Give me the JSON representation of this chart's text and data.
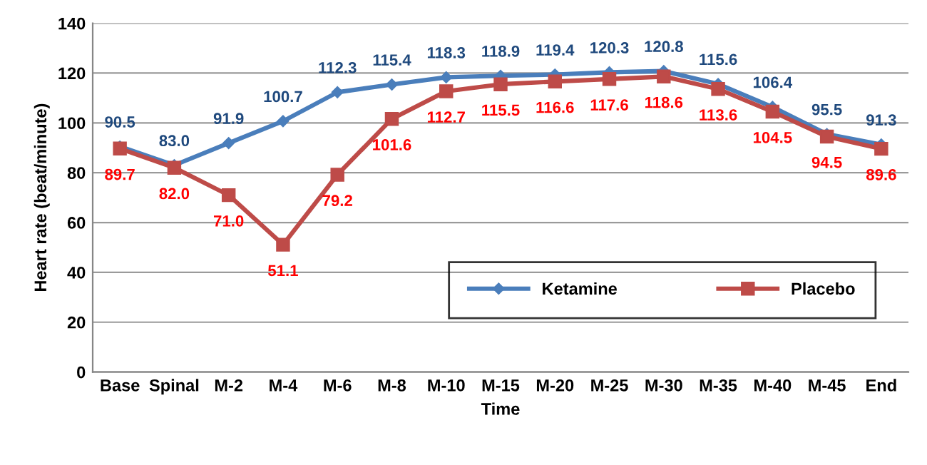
{
  "chart_data": {
    "type": "line",
    "xlabel": "Time",
    "ylabel": "Heart rate (beat/minute)",
    "categories": [
      "Base",
      "Spinal",
      "M-2",
      "M-4",
      "M-6",
      "M-8",
      "M-10",
      "M-15",
      "M-20",
      "M-25",
      "M-30",
      "M-35",
      "M-40",
      "M-45",
      "End"
    ],
    "series": [
      {
        "name": "Ketamine",
        "color": "#4a7ebb",
        "marker": "diamond",
        "values": [
          90.5,
          83.0,
          91.9,
          100.7,
          112.3,
          115.4,
          118.3,
          118.9,
          119.4,
          120.3,
          120.8,
          115.6,
          106.4,
          95.5,
          91.3
        ],
        "value_labels": [
          "90.5",
          "83.0",
          "91.9",
          "100.7",
          "112.3",
          "115.4",
          "118.3",
          "118.9",
          "119.4",
          "120.3",
          "120.8",
          "115.6",
          "106.4",
          "95.5",
          "91.3"
        ]
      },
      {
        "name": "Placebo",
        "color": "#be4b48",
        "marker": "square",
        "values": [
          89.7,
          82.0,
          71.0,
          51.1,
          79.2,
          101.6,
          112.7,
          115.5,
          116.6,
          117.6,
          118.6,
          113.6,
          104.5,
          94.5,
          89.6
        ],
        "value_labels": [
          "89.7",
          "82.0",
          "71.0",
          "51.1",
          "79.2",
          "101.6",
          "112.7",
          "115.5",
          "116.6",
          "117.6",
          "118.6",
          "113.6",
          "104.5",
          "94.5",
          "89.6"
        ]
      }
    ],
    "ylim": [
      0,
      140
    ],
    "yticks": [
      0,
      20,
      40,
      60,
      80,
      100,
      120,
      140
    ],
    "grid": "y",
    "legend": "bottom right",
    "line_style": "solid"
  }
}
